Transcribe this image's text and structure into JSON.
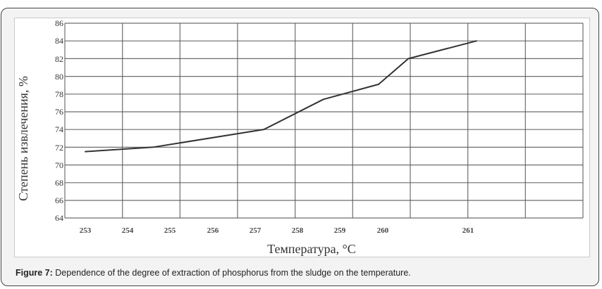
{
  "figure": {
    "caption_label": "Figure 7:",
    "caption_text": " Dependence of the degree of extraction of phosphorus from the sludge on the temperature."
  },
  "chart_data": {
    "type": "line",
    "title": "",
    "xlabel": "Температура, °C",
    "ylabel": "Степень извлечения, %",
    "x_tick_labels": [
      "253",
      "254",
      "255",
      "256",
      "257",
      "258",
      "259",
      "260",
      "261"
    ],
    "y_tick_labels": [
      "64",
      "66",
      "68",
      "70",
      "72",
      "74",
      "76",
      "78",
      "80",
      "82",
      "84",
      "86"
    ],
    "ylim": [
      64,
      86
    ],
    "grid": true,
    "legend": null,
    "series": [
      {
        "name": "Степень извлечения",
        "color": "#333333",
        "points": [
          {
            "x": 253.0,
            "y": 71.5
          },
          {
            "x": 254.6,
            "y": 72.0
          },
          {
            "x": 257.2,
            "y": 74.0
          },
          {
            "x": 258.6,
            "y": 77.4
          },
          {
            "x": 259.9,
            "y": 79.1
          },
          {
            "x": 260.6,
            "y": 82.0
          },
          {
            "x": 262.2,
            "y": 84.0
          }
        ]
      }
    ]
  }
}
